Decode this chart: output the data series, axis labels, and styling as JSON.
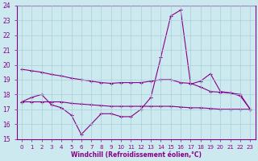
{
  "xlabel": "Windchill (Refroidissement éolien,°C)",
  "xlim": [
    -0.5,
    23.5
  ],
  "ylim": [
    15,
    24
  ],
  "yticks": [
    15,
    16,
    17,
    18,
    19,
    20,
    21,
    22,
    23,
    24
  ],
  "xticks": [
    0,
    1,
    2,
    3,
    4,
    5,
    6,
    7,
    8,
    9,
    10,
    11,
    12,
    13,
    14,
    15,
    16,
    17,
    18,
    19,
    20,
    21,
    22,
    23
  ],
  "background_color": "#cce9f0",
  "grid_color": "#aacfd8",
  "line_color": "#880088",
  "line1_x": [
    0,
    1,
    2,
    3,
    4,
    5,
    6,
    7,
    8,
    9,
    10,
    11,
    12,
    13,
    14,
    15,
    16,
    17,
    18,
    19,
    20,
    21,
    22,
    23
  ],
  "line1_y": [
    17.5,
    17.8,
    18.0,
    17.3,
    17.1,
    16.6,
    15.3,
    16.0,
    16.7,
    16.7,
    16.5,
    16.5,
    17.0,
    17.8,
    20.5,
    23.3,
    23.7,
    18.7,
    18.9,
    19.4,
    18.2,
    18.1,
    18.0,
    17.0
  ],
  "line2_x": [
    0,
    1,
    2,
    3,
    4,
    5,
    6,
    7,
    8,
    9,
    10,
    11,
    12,
    13,
    14,
    15,
    16,
    17,
    18,
    19,
    20,
    21,
    22,
    23
  ],
  "line2_y": [
    19.7,
    19.6,
    19.5,
    19.35,
    19.25,
    19.1,
    19.0,
    18.9,
    18.8,
    18.75,
    18.8,
    18.8,
    18.8,
    18.9,
    19.0,
    19.0,
    18.8,
    18.75,
    18.5,
    18.2,
    18.15,
    18.1,
    17.9,
    17.0
  ],
  "line3_x": [
    0,
    1,
    2,
    3,
    4,
    5,
    6,
    7,
    8,
    9,
    10,
    11,
    12,
    13,
    14,
    15,
    16,
    17,
    18,
    19,
    20,
    21,
    22,
    23
  ],
  "line3_y": [
    17.5,
    17.5,
    17.5,
    17.5,
    17.5,
    17.4,
    17.35,
    17.3,
    17.25,
    17.2,
    17.2,
    17.2,
    17.2,
    17.2,
    17.2,
    17.2,
    17.15,
    17.1,
    17.1,
    17.05,
    17.0,
    17.0,
    17.0,
    17.0
  ]
}
